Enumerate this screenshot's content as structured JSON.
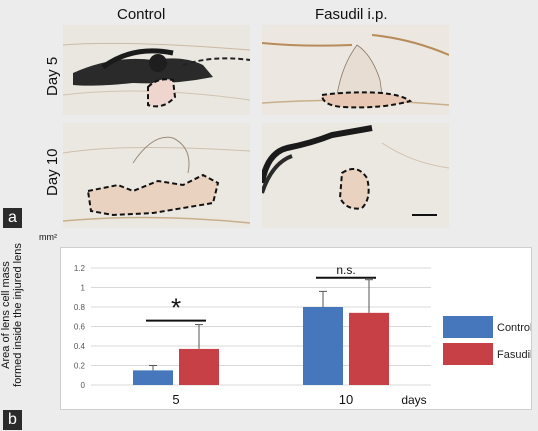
{
  "panel_a": {
    "label": "a",
    "columns": [
      "Control",
      "Fasudil i.p."
    ],
    "rows": [
      "Day 5",
      "Day 10"
    ]
  },
  "panel_b": {
    "label": "b",
    "unit": "mm²",
    "ylabel_line1": "Area of lens cell mass",
    "ylabel_line2": "formed inside the injured lens",
    "xunit": "days",
    "sig_day5": "*",
    "sig_day10": "n.s."
  },
  "colors": {
    "control": "#4677bd",
    "fasudil": "#c64045"
  },
  "chart_data": {
    "type": "bar",
    "categories": [
      "5",
      "10"
    ],
    "series": [
      {
        "name": "Control",
        "values": [
          0.15,
          0.8
        ],
        "errors": [
          0.05,
          0.16
        ]
      },
      {
        "name": "Fasudil i.p.",
        "values": [
          0.37,
          0.74
        ],
        "errors": [
          0.25,
          0.34
        ]
      }
    ],
    "ylim": [
      0,
      1.2
    ],
    "yticks": [
      "0",
      "0.2",
      "0.4",
      "0.6",
      "0.8",
      "1",
      "1.2"
    ],
    "xlabel": "days",
    "ylabel": "Area of lens cell mass formed inside the injured lens",
    "grid": true,
    "legend": "right"
  }
}
